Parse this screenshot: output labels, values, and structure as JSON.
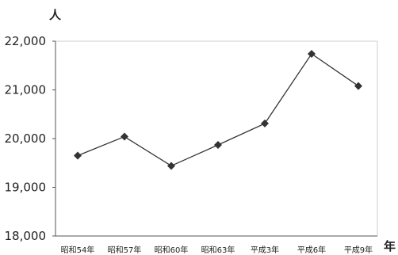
{
  "chart_data": {
    "type": "line",
    "title": "",
    "ylabel": "人",
    "xlabel": "年",
    "categories": [
      "昭和54年",
      "昭和57年",
      "昭和60年",
      "昭和63年",
      "平成3年",
      "平成6年",
      "平成9年"
    ],
    "series": [
      {
        "values": [
          19650,
          20040,
          19440,
          19870,
          20310,
          21740,
          21080
        ]
      }
    ],
    "ylim": [
      18000,
      22000
    ],
    "yticks": [
      18000,
      19000,
      20000,
      21000,
      22000
    ],
    "ytick_labels": [
      "18,000",
      "19,000",
      "20,000",
      "21,000",
      "22,000"
    ],
    "grid": false,
    "legend": "none",
    "marker": "diamond",
    "line_color": "#333333"
  }
}
